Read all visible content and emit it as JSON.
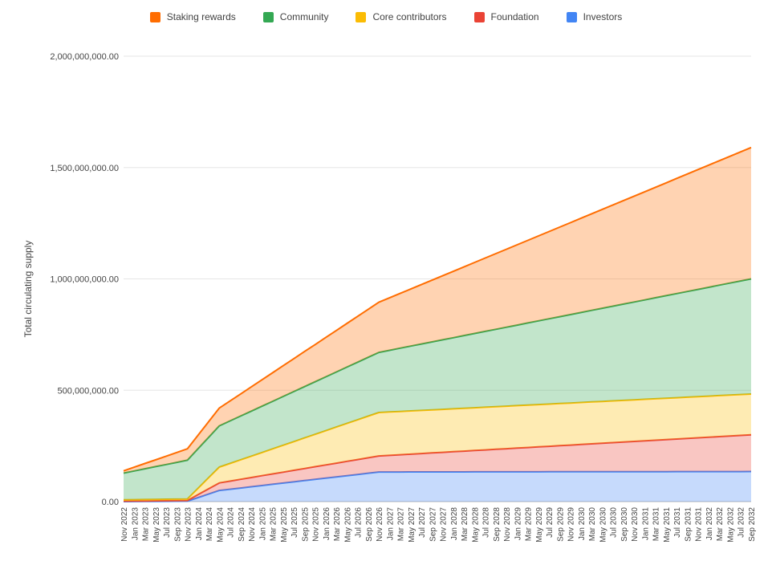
{
  "legend": {
    "items": [
      {
        "label": "Staking rewards",
        "color": "#FF6D01"
      },
      {
        "label": "Community",
        "color": "#34A853"
      },
      {
        "label": "Core contributors",
        "color": "#FBBC04"
      },
      {
        "label": "Foundation",
        "color": "#EA4335"
      },
      {
        "label": "Investors",
        "color": "#4285F4"
      }
    ]
  },
  "axes": {
    "y_title": "Total circulating supply",
    "y_ticks": [
      {
        "label": "2,000,000,000.00",
        "value_millions": 2000
      },
      {
        "label": "1,500,000,000.00",
        "value_millions": 1500
      },
      {
        "label": "1,000,000,000.00",
        "value_millions": 1000
      },
      {
        "label": "500,000,000.00",
        "value_millions": 500
      },
      {
        "label": "0.00",
        "value_millions": 0
      }
    ]
  },
  "colors": {
    "gridline": "#e6e6e6",
    "baseline": "#b7b7b7",
    "tick_text": "#444444",
    "area_fill_opacity": 0.3
  },
  "chart_data": {
    "type": "area",
    "stacked": true,
    "title": "",
    "xlabel": "",
    "ylabel": "Total circulating supply",
    "ylim_millions": [
      0,
      2000
    ],
    "unit": "tokens (axis shown in absolute units, data stored in millions)",
    "legend_position": "top",
    "grid": "horizontal",
    "note": "Stacked area chart of token supply unlock schedule. Series listed bottom-to-top of the stack. Each series is piecewise-linear; 'vertices' give the polyline breakpoints as [category_index, cumulative_stack_value_millions]. 'band_values_millions' are the series' own (non-cumulative) values at those same vertices. Intermediate categories are linear interpolations.",
    "categories": [
      "Nov 2022",
      "Jan 2023",
      "Mar 2023",
      "May 2023",
      "Jul 2023",
      "Sep 2023",
      "Nov 2023",
      "Jan 2024",
      "Mar 2024",
      "May 2024",
      "Jul 2024",
      "Sep 2024",
      "Nov 2024",
      "Jan 2025",
      "Mar 2025",
      "May 2025",
      "Jul 2025",
      "Sep 2025",
      "Nov 2025",
      "Jan 2026",
      "Mar 2026",
      "May 2026",
      "Jul 2026",
      "Sep 2026",
      "Nov 2026",
      "Jan 2027",
      "Mar 2027",
      "May 2027",
      "Jul 2027",
      "Sep 2027",
      "Nov 2027",
      "Jan 2028",
      "Mar 2028",
      "May 2028",
      "Jul 2028",
      "Sep 2028",
      "Nov 2028",
      "Jan 2029",
      "Mar 2029",
      "May 2029",
      "Jul 2029",
      "Sep 2029",
      "Nov 2029",
      "Jan 2030",
      "Mar 2030",
      "May 2030",
      "Jul 2030",
      "Sep 2030",
      "Nov 2030",
      "Jan 2031",
      "Mar 2031",
      "May 2031",
      "Jul 2031",
      "Sep 2031",
      "Nov 2031",
      "Jan 2032",
      "Mar 2032",
      "May 2032",
      "Jul 2032",
      "Sep 2032"
    ],
    "series": [
      {
        "name": "Investors",
        "color": "#4285F4",
        "vertices": [
          [
            0,
            0
          ],
          [
            6,
            2
          ],
          [
            9,
            50
          ],
          [
            24,
            133
          ],
          [
            59,
            135
          ]
        ],
        "band_values_millions": [
          0,
          2,
          50,
          133,
          135
        ]
      },
      {
        "name": "Foundation",
        "color": "#EA4335",
        "vertices": [
          [
            0,
            2
          ],
          [
            6,
            5
          ],
          [
            9,
            84
          ],
          [
            24,
            205
          ],
          [
            59,
            300
          ]
        ],
        "band_values_millions": [
          2,
          3,
          34,
          72,
          165
        ]
      },
      {
        "name": "Core contributors",
        "color": "#FBBC04",
        "vertices": [
          [
            0,
            8
          ],
          [
            6,
            12
          ],
          [
            9,
            155
          ],
          [
            24,
            400
          ],
          [
            59,
            483
          ]
        ],
        "band_values_millions": [
          6,
          7,
          71,
          195,
          183
        ]
      },
      {
        "name": "Community",
        "color": "#34A853",
        "vertices": [
          [
            0,
            128
          ],
          [
            6,
            186
          ],
          [
            9,
            340
          ],
          [
            24,
            670
          ],
          [
            59,
            1000
          ]
        ],
        "band_values_millions": [
          120,
          174,
          185,
          270,
          517
        ]
      },
      {
        "name": "Staking rewards",
        "color": "#FF6D01",
        "vertices": [
          [
            0,
            138
          ],
          [
            6,
            237
          ],
          [
            9,
            420
          ],
          [
            24,
            895
          ],
          [
            59,
            1590
          ]
        ],
        "band_values_millions": [
          10,
          51,
          80,
          225,
          590
        ]
      }
    ]
  }
}
